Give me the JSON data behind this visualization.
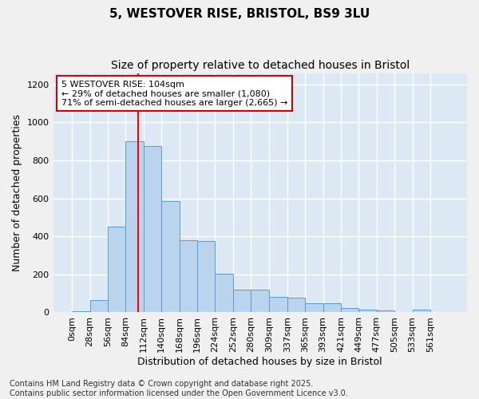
{
  "title": "5, WESTOVER RISE, BRISTOL, BS9 3LU",
  "subtitle": "Size of property relative to detached houses in Bristol",
  "xlabel": "Distribution of detached houses by size in Bristol",
  "ylabel": "Number of detached properties",
  "bin_labels": [
    "0sqm",
    "28sqm",
    "56sqm",
    "84sqm",
    "112sqm",
    "140sqm",
    "168sqm",
    "196sqm",
    "224sqm",
    "252sqm",
    "280sqm",
    "309sqm",
    "337sqm",
    "365sqm",
    "393sqm",
    "421sqm",
    "449sqm",
    "477sqm",
    "505sqm",
    "533sqm",
    "561sqm"
  ],
  "bar_heights": [
    5,
    65,
    450,
    900,
    875,
    585,
    380,
    375,
    205,
    120,
    120,
    80,
    78,
    50,
    48,
    25,
    15,
    12,
    0,
    15,
    0
  ],
  "bin_edges": [
    0,
    28,
    56,
    84,
    112,
    140,
    168,
    196,
    224,
    252,
    280,
    309,
    337,
    365,
    393,
    421,
    449,
    477,
    505,
    533,
    561
  ],
  "bar_color": "#bad4ed",
  "bar_edge_color": "#5b9bd5",
  "property_value": 104,
  "vline_color": "#ff0000",
  "annotation_line1": "5 WESTOVER RISE: 104sqm",
  "annotation_line2": "← 29% of detached houses are smaller (1,080)",
  "annotation_line3": "71% of semi-detached houses are larger (2,665) →",
  "annotation_box_color": "#ffffff",
  "annotation_box_edge": "#cc0000",
  "ylim": [
    0,
    1260
  ],
  "yticks": [
    0,
    200,
    400,
    600,
    800,
    1000,
    1200
  ],
  "background_color": "#dce9f5",
  "grid_color": "#ffffff",
  "footer_text": "Contains HM Land Registry data © Crown copyright and database right 2025.\nContains public sector information licensed under the Open Government Licence v3.0.",
  "title_fontsize": 11,
  "subtitle_fontsize": 10,
  "xlabel_fontsize": 9,
  "ylabel_fontsize": 9,
  "tick_fontsize": 8,
  "annotation_fontsize": 8,
  "footer_fontsize": 7
}
